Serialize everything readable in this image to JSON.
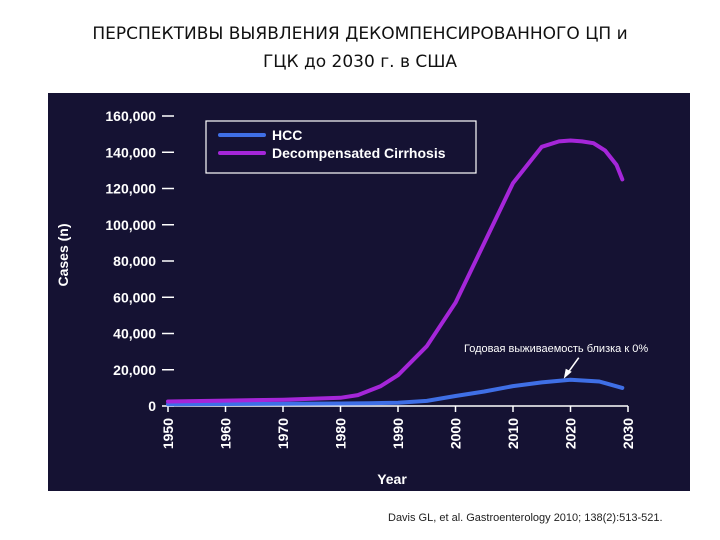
{
  "title": {
    "line1": "ПЕРСПЕКТИВЫ ВЫЯВЛЕНИЯ ДЕКОМПЕНСИРОВАННОГО ЦП и",
    "line2": "ГЦК до 2030 г.  в США"
  },
  "citation": "Davis GL, et al. Gastroenterology 2010; 138(2):513-521.",
  "colors": {
    "panel_background": "#151233",
    "hcc": "#3f6fe6",
    "decompensated_cirrhosis": "#a526d9",
    "text": "#ffffff"
  },
  "chart_data": {
    "type": "line",
    "xlabel": "Year",
    "ylabel": "Cases (n)",
    "xlim": [
      1950,
      2030
    ],
    "ylim": [
      0,
      160000
    ],
    "x_ticks": [
      1950,
      1960,
      1970,
      1980,
      1990,
      2000,
      2010,
      2020,
      2030
    ],
    "y_ticks": [
      0,
      20000,
      40000,
      60000,
      80000,
      100000,
      120000,
      140000,
      160000
    ],
    "y_tick_labels": [
      "0",
      "20,000",
      "40,000",
      "60,000",
      "80,000",
      "100,000",
      "120,000",
      "140,000",
      "160,000"
    ],
    "grid": false,
    "legend": "top-left",
    "series": [
      {
        "name": "HCC",
        "color": "#3f6fe6",
        "x": [
          1950,
          1960,
          1970,
          1980,
          1985,
          1990,
          1995,
          2000,
          2005,
          2010,
          2015,
          2020,
          2025,
          2029
        ],
        "values": [
          1000,
          1100,
          1200,
          1400,
          1500,
          1800,
          2800,
          5500,
          8000,
          11000,
          13000,
          14500,
          13500,
          10000
        ]
      },
      {
        "name": "Decompensated Cirrhosis",
        "color": "#a526d9",
        "x": [
          1950,
          1960,
          1970,
          1980,
          1983,
          1987,
          1990,
          1995,
          2000,
          2005,
          2010,
          2015,
          2018,
          2020,
          2022,
          2024,
          2026,
          2028,
          2029
        ],
        "values": [
          2500,
          3000,
          3500,
          4500,
          6000,
          11000,
          17000,
          33000,
          57000,
          90000,
          123000,
          143000,
          146000,
          146500,
          146000,
          145000,
          141000,
          133000,
          125000
        ]
      }
    ],
    "annotations": [
      {
        "text": "Годовая выживаемость  близка к 0%",
        "x": 2019,
        "y": 14500
      }
    ]
  }
}
